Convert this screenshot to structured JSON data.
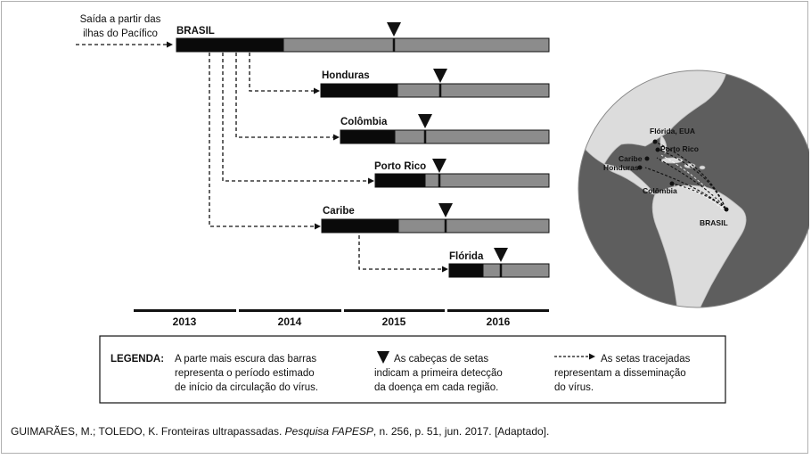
{
  "origin": {
    "line1": "Saída a partir das",
    "line2": "ilhas do Pacífico"
  },
  "regions": [
    "BRASIL",
    "Honduras",
    "Colômbia",
    "Porto Rico",
    "Caribe",
    "Flórida"
  ],
  "years": [
    "2013",
    "2014",
    "2015",
    "2016"
  ],
  "legend": {
    "title": "LEGENDA:",
    "col1": [
      "A parte mais escura das barras",
      "representa o período estimado",
      "de início da circulação do vírus."
    ],
    "col2": [
      "As cabeças de setas",
      "indicam a primeira detecção",
      "da doença em cada região."
    ],
    "col3": [
      "As setas tracejadas",
      "representam a disseminação",
      "do vírus."
    ]
  },
  "map_labels": [
    "Flórida, EUA",
    "Porto Rico",
    "Caribe",
    "Honduras",
    "Colômbia",
    "BRASIL"
  ],
  "caption": {
    "authors": "GUIMARÃES, M.; TOLEDO, K. Fronteiras ultrapassadas. ",
    "journal": "Pesquisa FAPESP",
    "rest": ", n. 256, p. 51, jun. 2017. [Adaptado]."
  },
  "colors": {
    "dark": "#0a0a0a",
    "light": "#8c8c8c",
    "globe_ocean": "#5e5e5e",
    "globe_land": "#dcdcdc"
  }
}
